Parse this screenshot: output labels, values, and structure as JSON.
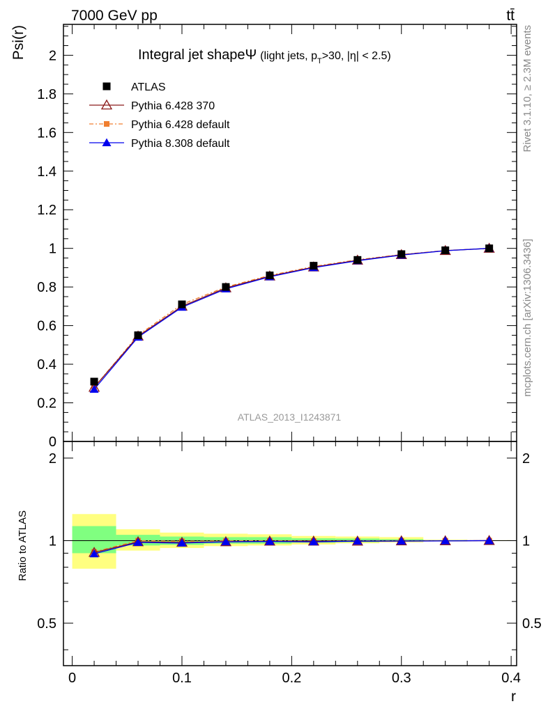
{
  "header": {
    "energy_label": "7000 GeV pp",
    "process_label": "tt̄"
  },
  "side_labels": {
    "rivet": "Rivet 3.1.10, ≥ 2.3M events",
    "mcplots": "mcplots.cern.ch [arXiv:1306.3436]"
  },
  "chart_data": {
    "type": "line",
    "title_main": "Integral jet shape",
    "title_symbol": "Ψ",
    "title_paren_open": "(light jets, p",
    "title_sub": "T",
    "title_paren_close": ">30, |η| < 2.5)",
    "analysis_tag": "ATLAS_2013_I1243871",
    "xlabel": "r",
    "ylabel": "Psi(r)",
    "ratio_ylabel": "Ratio to ATLAS",
    "xlim": [
      -0.008,
      0.405
    ],
    "ylim": [
      0,
      2.16
    ],
    "ratio_ylim": [
      0.35,
      2.3
    ],
    "ratio_ylog": true,
    "x_ticks": [
      "0",
      "0.1",
      "0.2",
      "0.3",
      "0.4"
    ],
    "y_ticks": [
      "0",
      "0.2",
      "0.4",
      "0.6",
      "0.8",
      "1",
      "1.2",
      "1.4",
      "1.6",
      "1.8",
      "2"
    ],
    "ratio_ticks": [
      "0.5",
      "1",
      "2"
    ],
    "x": [
      0.02,
      0.06,
      0.1,
      0.14,
      0.18,
      0.22,
      0.26,
      0.3,
      0.34,
      0.38
    ],
    "bin_edges": [
      0,
      0.04,
      0.08,
      0.12,
      0.16,
      0.2,
      0.24,
      0.28,
      0.32,
      0.36,
      0.4
    ],
    "legend_position": "top-left",
    "series": [
      {
        "name": "ATLAS",
        "marker": "square",
        "color": "#000000",
        "values": [
          0.31,
          0.55,
          0.71,
          0.8,
          0.86,
          0.91,
          0.94,
          0.97,
          0.99,
          1.0
        ],
        "ratio": [
          1,
          1,
          1,
          1,
          1,
          1,
          1,
          1,
          1,
          1
        ]
      },
      {
        "name": "Pythia 6.428 370",
        "marker": "triangle-open",
        "color": "#8b1a1a",
        "values": [
          0.28,
          0.545,
          0.7,
          0.795,
          0.856,
          0.903,
          0.938,
          0.967,
          0.988,
          1.0
        ],
        "ratio": [
          0.905,
          0.99,
          0.985,
          0.99,
          0.995,
          0.995,
          0.995,
          0.997,
          0.998,
          1.0
        ]
      },
      {
        "name": "Pythia 6.428 default",
        "marker": "square-small",
        "color": "#f07f30",
        "values": [
          0.28,
          0.55,
          0.71,
          0.8,
          0.86,
          0.906,
          0.941,
          0.968,
          0.989,
          1.0
        ],
        "ratio": [
          0.91,
          1.0,
          0.995,
          0.998,
          1.0,
          0.997,
          0.998,
          0.998,
          0.999,
          1.0
        ]
      },
      {
        "name": "Pythia 8.308 default",
        "marker": "triangle",
        "color": "#0000ee",
        "values": [
          0.27,
          0.54,
          0.695,
          0.79,
          0.853,
          0.9,
          0.936,
          0.965,
          0.988,
          1.0
        ],
        "ratio": [
          0.895,
          0.985,
          0.98,
          0.99,
          0.993,
          0.99,
          0.996,
          0.996,
          0.998,
          1.0
        ]
      }
    ],
    "uncertainty_bands": {
      "yellow": {
        "color": "#ffff80",
        "low": [
          0.79,
          0.92,
          0.94,
          0.955,
          0.96,
          0.968,
          0.978,
          0.985,
          0.993,
          0.997
        ],
        "high": [
          1.25,
          1.1,
          1.07,
          1.06,
          1.055,
          1.04,
          1.035,
          1.03,
          1.008,
          1.004
        ]
      },
      "green": {
        "color": "#80ff80",
        "low": [
          0.9,
          0.96,
          0.965,
          0.975,
          0.975,
          0.983,
          0.987,
          0.993,
          0.996,
          0.998
        ],
        "high": [
          1.13,
          1.05,
          1.035,
          1.03,
          1.03,
          1.02,
          1.018,
          1.012,
          1.004,
          1.002
        ]
      }
    }
  }
}
